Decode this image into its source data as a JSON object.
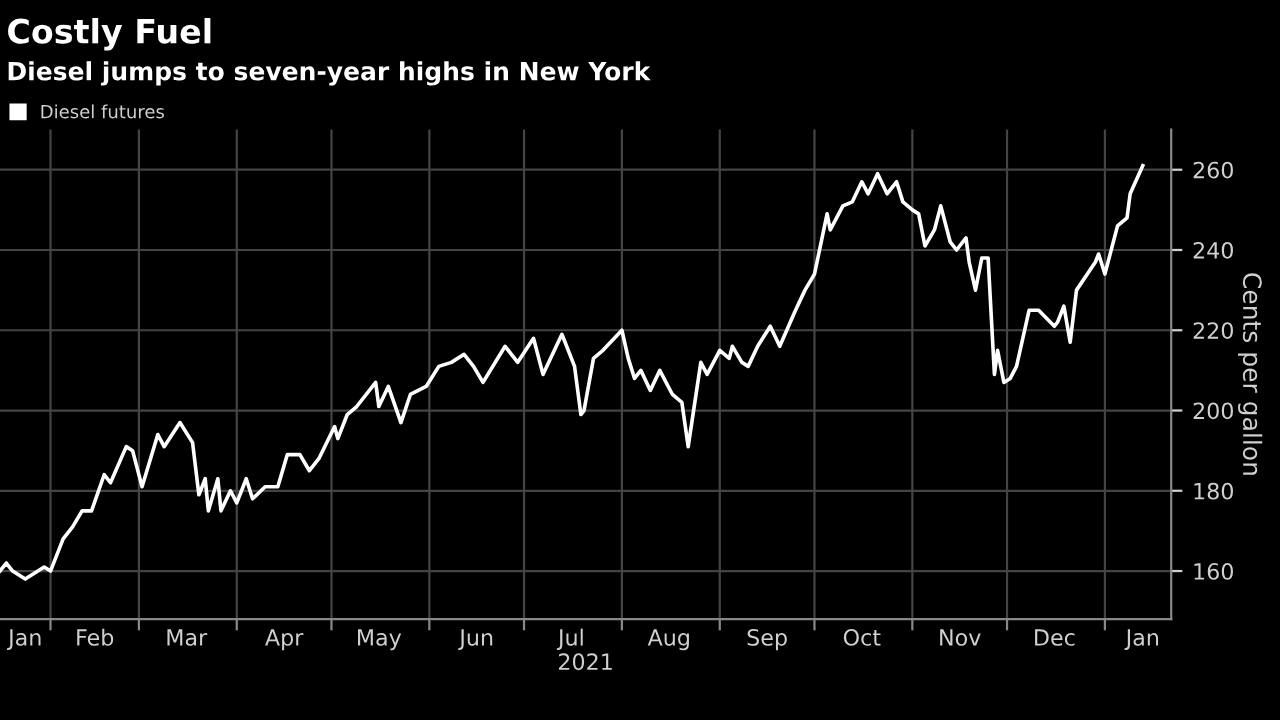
{
  "chart_data": {
    "type": "line",
    "title": "Costly Fuel",
    "subtitle": "Diesel jumps to seven-year highs in New York",
    "xlabel": "2021",
    "ylabel": "Cents per gallon",
    "x": [
      "2021-01-16",
      "2021-01-18",
      "2021-01-20",
      "2021-01-24",
      "2021-01-30",
      "2021-02-01",
      "2021-02-05",
      "2021-02-08",
      "2021-02-11",
      "2021-02-14",
      "2021-02-18",
      "2021-02-20",
      "2021-02-25",
      "2021-02-27",
      "2021-03-02",
      "2021-03-07",
      "2021-03-09",
      "2021-03-14",
      "2021-03-18",
      "2021-03-20",
      "2021-03-22",
      "2021-03-23",
      "2021-03-26",
      "2021-03-27",
      "2021-03-30",
      "2021-04-01",
      "2021-04-04",
      "2021-04-06",
      "2021-04-10",
      "2021-04-14",
      "2021-04-17",
      "2021-04-21",
      "2021-04-24",
      "2021-04-27",
      "2021-05-02",
      "2021-05-03",
      "2021-05-06",
      "2021-05-09",
      "2021-05-15",
      "2021-05-16",
      "2021-05-19",
      "2021-05-23",
      "2021-05-26",
      "2021-05-31",
      "2021-06-04",
      "2021-06-08",
      "2021-06-12",
      "2021-06-15",
      "2021-06-18",
      "2021-06-25",
      "2021-06-29",
      "2021-07-04",
      "2021-07-07",
      "2021-07-13",
      "2021-07-17",
      "2021-07-19",
      "2021-07-20",
      "2021-07-23",
      "2021-07-26",
      "2021-08-01",
      "2021-08-03",
      "2021-08-05",
      "2021-08-07",
      "2021-08-10",
      "2021-08-13",
      "2021-08-17",
      "2021-08-20",
      "2021-08-22",
      "2021-08-26",
      "2021-08-28",
      "2021-09-01",
      "2021-09-04",
      "2021-09-05",
      "2021-09-08",
      "2021-09-10",
      "2021-09-13",
      "2021-09-17",
      "2021-09-20",
      "2021-09-25",
      "2021-09-28",
      "2021-10-01",
      "2021-10-05",
      "2021-10-06",
      "2021-10-10",
      "2021-10-13",
      "2021-10-16",
      "2021-10-18",
      "2021-10-21",
      "2021-10-24",
      "2021-10-27",
      "2021-10-29",
      "2021-11-01",
      "2021-11-03",
      "2021-11-05",
      "2021-11-08",
      "2021-11-10",
      "2021-11-13",
      "2021-11-15",
      "2021-11-18",
      "2021-11-19",
      "2021-11-21",
      "2021-11-23",
      "2021-11-25",
      "2021-11-27",
      "2021-11-28",
      "2021-11-30",
      "2021-12-02",
      "2021-12-04",
      "2021-12-08",
      "2021-12-11",
      "2021-12-16",
      "2021-12-17",
      "2021-12-19",
      "2021-12-21",
      "2021-12-23",
      "2021-12-29",
      "2021-12-30",
      "2022-01-01",
      "2022-01-05",
      "2022-01-08",
      "2022-01-09",
      "2022-01-13"
    ],
    "series": [
      {
        "name": "Diesel futures",
        "color": "#ffffff",
        "values": [
          160,
          162,
          160,
          158,
          161,
          160,
          168,
          171,
          175,
          175,
          184,
          182,
          191,
          190,
          181,
          194,
          191,
          197,
          192,
          179,
          183,
          175,
          183,
          175,
          180,
          177,
          183,
          178,
          181,
          181,
          189,
          189,
          185,
          188,
          196,
          193,
          199,
          201,
          207,
          201,
          206,
          197,
          204,
          206,
          211,
          212,
          214,
          211,
          207,
          216,
          212,
          218,
          209,
          219,
          211,
          199,
          200,
          213,
          215,
          220,
          213,
          208,
          210,
          205,
          210,
          204,
          202,
          191,
          212,
          209,
          215,
          213,
          216,
          212,
          211,
          216,
          221,
          216,
          225,
          230,
          234,
          249,
          245,
          251,
          252,
          257,
          254,
          259,
          254,
          257,
          252,
          250,
          249,
          241,
          245,
          251,
          242,
          240,
          243,
          237,
          230,
          238,
          238,
          209,
          215,
          207,
          208,
          211,
          225,
          225,
          221,
          222,
          226,
          217,
          230,
          237,
          239,
          234,
          246,
          248,
          254,
          261
        ]
      }
    ],
    "xlim": [
      "2021-01-16",
      "2022-01-22"
    ],
    "xticks": [
      {
        "value": "2021-01-24",
        "label": "Jan"
      },
      {
        "value": "2021-02-01",
        "label": null
      },
      {
        "value": "2021-02-15",
        "label": "Feb"
      },
      {
        "value": "2021-03-01",
        "label": null
      },
      {
        "value": "2021-03-16",
        "label": "Mar"
      },
      {
        "value": "2021-04-01",
        "label": null
      },
      {
        "value": "2021-04-16",
        "label": "Apr"
      },
      {
        "value": "2021-05-01",
        "label": null
      },
      {
        "value": "2021-05-16",
        "label": "May"
      },
      {
        "value": "2021-06-01",
        "label": null
      },
      {
        "value": "2021-06-16",
        "label": "Jun"
      },
      {
        "value": "2021-07-01",
        "label": null
      },
      {
        "value": "2021-07-16",
        "label": "Jul"
      },
      {
        "value": "2021-08-01",
        "label": null
      },
      {
        "value": "2021-08-16",
        "label": "Aug"
      },
      {
        "value": "2021-09-01",
        "label": null
      },
      {
        "value": "2021-09-16",
        "label": "Sep"
      },
      {
        "value": "2021-10-01",
        "label": null
      },
      {
        "value": "2021-10-16",
        "label": "Oct"
      },
      {
        "value": "2021-11-01",
        "label": null
      },
      {
        "value": "2021-11-16",
        "label": "Nov"
      },
      {
        "value": "2021-12-01",
        "label": null
      },
      {
        "value": "2021-12-16",
        "label": "Dec"
      },
      {
        "value": "2022-01-01",
        "label": null
      },
      {
        "value": "2022-01-13",
        "label": "Jan"
      }
    ],
    "ylim": [
      148,
      270
    ],
    "yticks": [
      160,
      180,
      200,
      220,
      240,
      260
    ],
    "grid": true,
    "legend": "top left",
    "line_style": "solid",
    "marker": "none"
  }
}
